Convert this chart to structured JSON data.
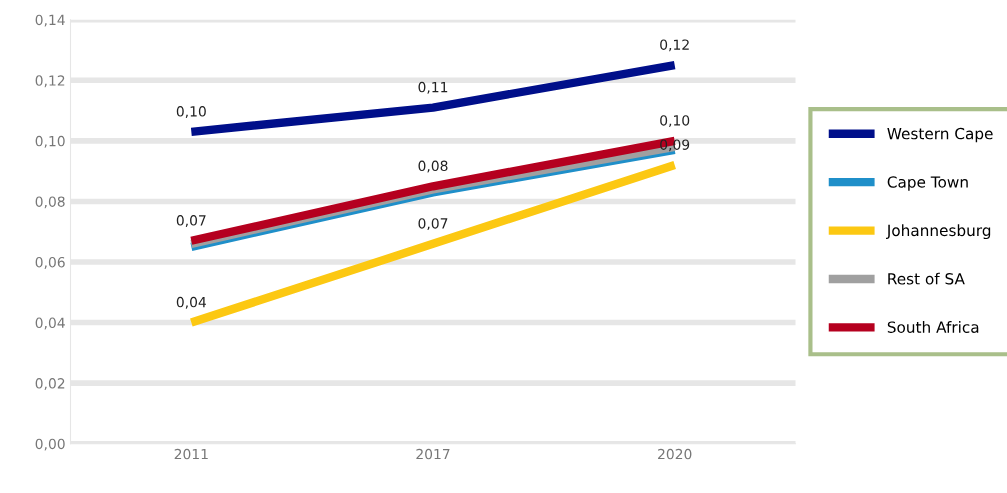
{
  "chart_data": {
    "type": "line",
    "categories": [
      "2011",
      "2017",
      "2020"
    ],
    "series": [
      {
        "name": "Western Cape",
        "color": "#000f8a",
        "values": [
          0.103,
          0.111,
          0.125
        ],
        "value_labels": [
          "0,10",
          "0,11",
          "0,12"
        ]
      },
      {
        "name": "Cape Town",
        "color": "#1f8fc9",
        "values": [
          0.065,
          0.083,
          0.097
        ],
        "value_labels": [
          null,
          null,
          null
        ]
      },
      {
        "name": "Johannesburg",
        "color": "#fcc812",
        "values": [
          0.04,
          0.066,
          0.092
        ],
        "value_labels": [
          "0,04",
          "0,07",
          "0,09"
        ]
      },
      {
        "name": "Rest of SA",
        "color": "#a0a0a0",
        "values": [
          0.066,
          0.084,
          0.098
        ],
        "value_labels": [
          null,
          null,
          null
        ]
      },
      {
        "name": "South Africa",
        "color": "#b5001f",
        "values": [
          0.067,
          0.085,
          0.1
        ],
        "value_labels": [
          "0,07",
          "0,08",
          "0,10"
        ]
      }
    ],
    "ylim": [
      0,
      0.14
    ],
    "yticks": [
      {
        "value": 0,
        "label": "0,00"
      },
      {
        "value": 0.02,
        "label": "0,02"
      },
      {
        "value": 0.04,
        "label": "0,04"
      },
      {
        "value": 0.06,
        "label": "0,06"
      },
      {
        "value": 0.08,
        "label": "0,08"
      },
      {
        "value": 0.1,
        "label": "0,10"
      },
      {
        "value": 0.12,
        "label": "0,12"
      },
      {
        "value": 0.14,
        "label": "0,14"
      }
    ],
    "grid": "y",
    "legend": "right",
    "marker": "none",
    "line_style": "solid"
  }
}
